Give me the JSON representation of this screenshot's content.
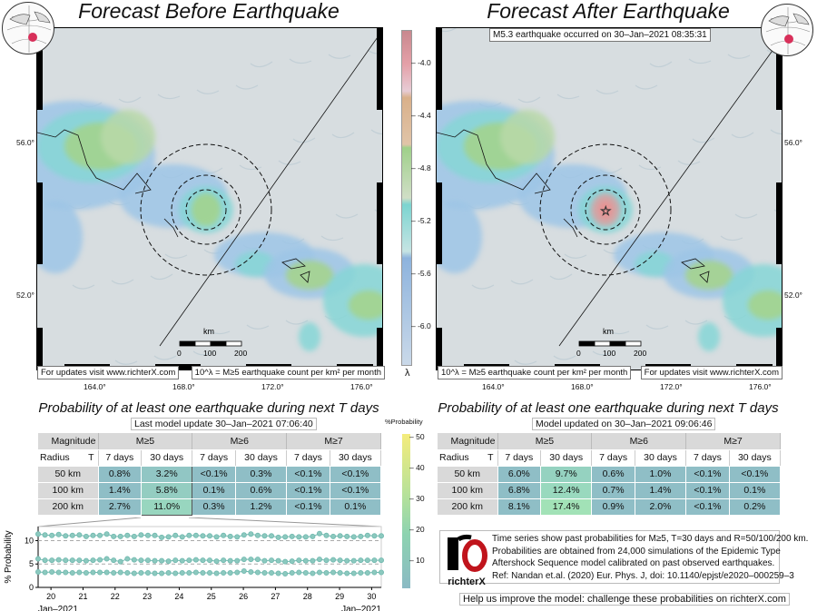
{
  "left_panel": {
    "title": "Forecast Before Earthquake",
    "footer_left": "For updates visit www.richterX.com",
    "footer_right": "10^λ = M≥5 earthquake count per km² per month",
    "lat_labels": [
      "56.0°",
      "52.0°"
    ],
    "lon_labels": [
      "164.0°",
      "168.0°",
      "172.0°",
      "176.0°"
    ],
    "scale_unit": "km",
    "scale_ticks": [
      "0",
      "100",
      "200"
    ]
  },
  "right_panel": {
    "title": "Forecast After Earthquake",
    "event_label": "M5.3 earthquake occurred on 30–Jan–2021 08:35:31",
    "footer_left": "10^λ = M≥5 earthquake count per km² per month",
    "footer_right": "For updates visit www.richterX.com",
    "lat_labels": [
      "56.0°",
      "52.0°"
    ],
    "lon_labels": [
      "164.0°",
      "168.0°",
      "172.0°",
      "176.0°"
    ],
    "scale_unit": "km",
    "scale_ticks": [
      "0",
      "100",
      "200"
    ]
  },
  "lambda_colorbar": {
    "label": "λ",
    "ticks": [
      "-4.0",
      "-4.4",
      "-4.8",
      "-5.2",
      "-5.6",
      "-6.0"
    ]
  },
  "prob_colorbar": {
    "label": "%Probability",
    "ticks": [
      "50",
      "40",
      "30",
      "20",
      "10"
    ]
  },
  "left_table": {
    "title": "Probability of at least one earthquake during next T days",
    "update": "Last model update 30–Jan–2021 07:06:40",
    "corner_top": "Magnitude",
    "corner_bottom_left": "Radius",
    "corner_bottom_right": "T",
    "magnitudes": [
      "M≥5",
      "M≥6",
      "M≥7"
    ],
    "periods": [
      "7 days",
      "30 days",
      "7 days",
      "30 days",
      "7 days",
      "30 days"
    ],
    "rows": [
      {
        "radius": "50 km",
        "values": [
          "0.8%",
          "3.2%",
          "<0.1%",
          "0.3%",
          "<0.1%",
          "<0.1%"
        ]
      },
      {
        "radius": "100 km",
        "values": [
          "1.4%",
          "5.8%",
          "0.1%",
          "0.6%",
          "<0.1%",
          "<0.1%"
        ]
      },
      {
        "radius": "200 km",
        "values": [
          "2.7%",
          "11.0%",
          "0.3%",
          "1.2%",
          "<0.1%",
          "0.1%"
        ]
      }
    ]
  },
  "right_table": {
    "title": "Probability of at least one earthquake during next T days",
    "update": "Model updated on 30–Jan–2021 09:06:46",
    "corner_top": "Magnitude",
    "corner_bottom_left": "Radius",
    "corner_bottom_right": "T",
    "magnitudes": [
      "M≥5",
      "M≥6",
      "M≥7"
    ],
    "periods": [
      "7 days",
      "30 days",
      "7 days",
      "30 days",
      "7 days",
      "30 days"
    ],
    "rows": [
      {
        "radius": "50 km",
        "values": [
          "6.0%",
          "9.7%",
          "0.6%",
          "1.0%",
          "<0.1%",
          "<0.1%"
        ]
      },
      {
        "radius": "100 km",
        "values": [
          "6.8%",
          "12.4%",
          "0.7%",
          "1.4%",
          "<0.1%",
          "0.1%"
        ]
      },
      {
        "radius": "200 km",
        "values": [
          "8.1%",
          "17.4%",
          "0.9%",
          "2.0%",
          "<0.1%",
          "0.2%"
        ]
      }
    ]
  },
  "info": {
    "lines": [
      "Time series show past probabilities for M≥5, T=30 days and R=50/100/200 km.",
      "Probabilities are obtained from 24,000 simulations of the Epidemic Type",
      "Aftershock Sequence model calibrated on past observed earthquakes.",
      "Ref: Nandan et.al. (2020) Eur. Phys. J, doi: 10.1140/epjst/e2020–000259–3"
    ],
    "logo_text": "richterX",
    "help": "Help us improve the model: challenge these probabilities on richterX.com"
  },
  "chart_data": {
    "type": "scatter",
    "ylabel": "% Probability",
    "ylim": [
      0,
      13
    ],
    "xlim": [
      19.6,
      30.3
    ],
    "yticks": [
      "0",
      "5",
      "10"
    ],
    "xticks": [
      "20",
      "21",
      "22",
      "23",
      "24",
      "25",
      "26",
      "27",
      "28",
      "29",
      "30"
    ],
    "x_start_label": "Jan–2021",
    "x_end_label": "Jan–2021",
    "x_start": 19.6,
    "x_step": 0.214,
    "series": [
      {
        "name": "R=200 km",
        "values": [
          11.4,
          11.2,
          11.1,
          11.3,
          11.0,
          11.1,
          11.2,
          10.9,
          11.1,
          11.1,
          11.4,
          10.9,
          10.9,
          11.1,
          10.9,
          11.2,
          11.1,
          11.1,
          10.7,
          10.8,
          11.1,
          10.8,
          11.1,
          11.1,
          11.0,
          11.0,
          10.8,
          11.1,
          10.9,
          10.8,
          11.2,
          11.4,
          11.1,
          11.0,
          11.0,
          10.7,
          10.8,
          10.9,
          10.8,
          10.8,
          10.9,
          11.5,
          11.1,
          10.9,
          11.0,
          10.9,
          10.8,
          10.9,
          11.1,
          11.0,
          11.0
        ]
      },
      {
        "name": "R=100 km",
        "values": [
          6.1,
          5.8,
          5.8,
          5.9,
          5.8,
          5.8,
          5.8,
          5.7,
          5.8,
          5.9,
          6.1,
          5.8,
          5.5,
          6.1,
          5.9,
          5.8,
          5.8,
          5.7,
          5.7,
          5.6,
          5.8,
          5.7,
          5.8,
          5.9,
          5.8,
          5.8,
          5.6,
          5.8,
          5.7,
          5.7,
          6.0,
          6.0,
          6.0,
          5.7,
          5.8,
          5.7,
          5.5,
          5.6,
          5.8,
          5.7,
          5.7,
          6.0,
          5.8,
          5.9,
          5.8,
          5.7,
          5.7,
          5.8,
          5.8,
          5.8,
          5.8
        ]
      },
      {
        "name": "R=50 km",
        "values": [
          3.3,
          3.2,
          3.3,
          3.2,
          3.2,
          3.1,
          3.2,
          3.1,
          3.2,
          3.2,
          3.2,
          3.1,
          3.2,
          3.1,
          3.0,
          3.1,
          3.1,
          3.0,
          3.0,
          3.1,
          3.0,
          3.1,
          3.1,
          3.2,
          3.1,
          3.1,
          3.0,
          3.1,
          3.1,
          3.2,
          3.5,
          3.3,
          3.2,
          3.1,
          3.1,
          3.0,
          2.9,
          3.1,
          3.2,
          3.1,
          3.0,
          3.2,
          3.1,
          3.2,
          3.1,
          3.0,
          3.0,
          3.1,
          3.1,
          3.2,
          3.2
        ]
      }
    ]
  },
  "colors": {
    "low": "#8fbec6",
    "cell_3_2": "#91c6c4",
    "cell_5_8": "#94cdc1",
    "cell_11_0": "#98d6bf",
    "cell_9_7": "#95d2c0",
    "cell_12_4": "#99d9be",
    "cell_17_4": "#a2e2b7",
    "marker": "#6fb8ae"
  }
}
